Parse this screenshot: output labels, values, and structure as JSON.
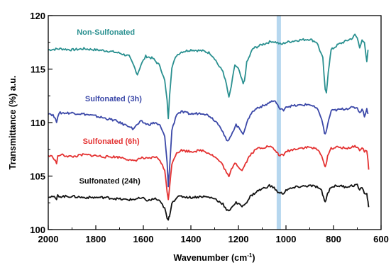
{
  "chart_data": {
    "type": "line",
    "xlabel": "Wavenumber (cm",
    "xlabel_sup": "-1",
    "xlabel_close": ")",
    "ylabel": "Transmittance (%) a.u.",
    "xlim": [
      2000,
      600
    ],
    "ylim": [
      100,
      120
    ],
    "x_reversed": true,
    "x_ticks": [
      2000,
      1800,
      1600,
      1400,
      1200,
      1000,
      800,
      600
    ],
    "x_tick_labels": [
      "2000",
      "1800",
      "1600",
      "1400",
      "1200",
      "1000",
      "800",
      "600"
    ],
    "y_ticks": [
      100,
      105,
      110,
      115,
      120
    ],
    "y_tick_labels": [
      "100",
      "105",
      "110",
      "115",
      "120"
    ],
    "grid": false,
    "highlight_band_x": 1030,
    "highlight_color": "#a9d0ec",
    "series": [
      {
        "name": "Non-Sulfonated",
        "color": "#2a9090",
        "points": [
          [
            2000,
            116.8
          ],
          [
            1950,
            116.9
          ],
          [
            1900,
            116.8
          ],
          [
            1850,
            116.9
          ],
          [
            1800,
            116.8
          ],
          [
            1750,
            116.7
          ],
          [
            1700,
            116.5
          ],
          [
            1660,
            116.2
          ],
          [
            1640,
            115.3
          ],
          [
            1625,
            114.5
          ],
          [
            1610,
            115.4
          ],
          [
            1590,
            116.2
          ],
          [
            1560,
            116.0
          ],
          [
            1530,
            115.3
          ],
          [
            1510,
            113.9
          ],
          [
            1500,
            112.0
          ],
          [
            1495,
            110.3
          ],
          [
            1490,
            112.5
          ],
          [
            1480,
            115.2
          ],
          [
            1460,
            116.3
          ],
          [
            1440,
            116.6
          ],
          [
            1400,
            116.8
          ],
          [
            1350,
            116.7
          ],
          [
            1320,
            116.5
          ],
          [
            1300,
            116.0
          ],
          [
            1280,
            115.2
          ],
          [
            1265,
            114.8
          ],
          [
            1250,
            113.5
          ],
          [
            1240,
            112.3
          ],
          [
            1230,
            113.4
          ],
          [
            1215,
            115.4
          ],
          [
            1200,
            115.0
          ],
          [
            1180,
            113.6
          ],
          [
            1175,
            113.9
          ],
          [
            1165,
            115.6
          ],
          [
            1140,
            116.9
          ],
          [
            1100,
            117.3
          ],
          [
            1060,
            117.6
          ],
          [
            1040,
            117.5
          ],
          [
            1020,
            117.3
          ],
          [
            1000,
            117.5
          ],
          [
            950,
            117.7
          ],
          [
            900,
            117.8
          ],
          [
            870,
            117.5
          ],
          [
            845,
            116.0
          ],
          [
            835,
            113.0
          ],
          [
            830,
            112.8
          ],
          [
            822,
            114.8
          ],
          [
            810,
            116.8
          ],
          [
            780,
            117.3
          ],
          [
            750,
            117.6
          ],
          [
            720,
            117.9
          ],
          [
            710,
            118.2
          ],
          [
            700,
            117.9
          ],
          [
            690,
            117.0
          ],
          [
            680,
            117.8
          ],
          [
            670,
            117.4
          ],
          [
            660,
            115.6
          ],
          [
            655,
            116.8
          ]
        ]
      },
      {
        "name": "Sulfonated (3h)",
        "color": "#3b48a8",
        "points": [
          [
            2000,
            110.9
          ],
          [
            1980,
            110.7
          ],
          [
            1965,
            110.1
          ],
          [
            1960,
            110.6
          ],
          [
            1950,
            110.9
          ],
          [
            1900,
            110.9
          ],
          [
            1850,
            110.8
          ],
          [
            1800,
            110.6
          ],
          [
            1760,
            110.4
          ],
          [
            1720,
            110.2
          ],
          [
            1680,
            109.8
          ],
          [
            1660,
            109.7
          ],
          [
            1645,
            109.4
          ],
          [
            1630,
            109.7
          ],
          [
            1610,
            110.1
          ],
          [
            1580,
            109.8
          ],
          [
            1550,
            110.0
          ],
          [
            1530,
            109.7
          ],
          [
            1510,
            108.7
          ],
          [
            1500,
            106.2
          ],
          [
            1495,
            104.1
          ],
          [
            1490,
            105.6
          ],
          [
            1480,
            109.3
          ],
          [
            1460,
            110.8
          ],
          [
            1440,
            111.0
          ],
          [
            1400,
            110.8
          ],
          [
            1350,
            110.9
          ],
          [
            1320,
            110.6
          ],
          [
            1300,
            110.2
          ],
          [
            1280,
            109.8
          ],
          [
            1265,
            109.1
          ],
          [
            1250,
            108.3
          ],
          [
            1240,
            108.3
          ],
          [
            1230,
            108.9
          ],
          [
            1210,
            109.8
          ],
          [
            1195,
            109.4
          ],
          [
            1180,
            109.0
          ],
          [
            1165,
            109.9
          ],
          [
            1150,
            110.8
          ],
          [
            1120,
            111.4
          ],
          [
            1090,
            111.6
          ],
          [
            1060,
            112.0
          ],
          [
            1040,
            111.9
          ],
          [
            1025,
            111.2
          ],
          [
            1010,
            111.2
          ],
          [
            1000,
            111.5
          ],
          [
            950,
            111.6
          ],
          [
            900,
            111.7
          ],
          [
            870,
            111.3
          ],
          [
            850,
            110.4
          ],
          [
            838,
            109.0
          ],
          [
            832,
            109.0
          ],
          [
            825,
            109.8
          ],
          [
            810,
            111.1
          ],
          [
            780,
            111.2
          ],
          [
            750,
            111.3
          ],
          [
            720,
            111.4
          ],
          [
            700,
            111.4
          ],
          [
            690,
            110.9
          ],
          [
            680,
            111.3
          ],
          [
            670,
            110.6
          ],
          [
            660,
            111.3
          ],
          [
            655,
            110.8
          ]
        ]
      },
      {
        "name": "Sulfonated (6h)",
        "color": "#e43232",
        "points": [
          [
            2000,
            106.9
          ],
          [
            1980,
            106.8
          ],
          [
            1965,
            106.2
          ],
          [
            1960,
            106.8
          ],
          [
            1950,
            107.0
          ],
          [
            1900,
            106.8
          ],
          [
            1850,
            107.0
          ],
          [
            1800,
            106.9
          ],
          [
            1760,
            106.8
          ],
          [
            1720,
            106.8
          ],
          [
            1680,
            106.7
          ],
          [
            1650,
            106.4
          ],
          [
            1630,
            106.5
          ],
          [
            1610,
            106.7
          ],
          [
            1580,
            106.6
          ],
          [
            1550,
            106.8
          ],
          [
            1530,
            106.5
          ],
          [
            1510,
            105.5
          ],
          [
            1500,
            103.5
          ],
          [
            1495,
            102.9
          ],
          [
            1490,
            103.8
          ],
          [
            1480,
            106.2
          ],
          [
            1460,
            107.2
          ],
          [
            1440,
            107.4
          ],
          [
            1400,
            107.3
          ],
          [
            1350,
            107.4
          ],
          [
            1320,
            107.1
          ],
          [
            1300,
            106.8
          ],
          [
            1280,
            106.4
          ],
          [
            1265,
            106.0
          ],
          [
            1250,
            105.3
          ],
          [
            1240,
            104.9
          ],
          [
            1230,
            105.6
          ],
          [
            1215,
            106.3
          ],
          [
            1200,
            105.9
          ],
          [
            1185,
            105.5
          ],
          [
            1170,
            106.2
          ],
          [
            1150,
            107.0
          ],
          [
            1120,
            107.6
          ],
          [
            1090,
            107.7
          ],
          [
            1070,
            107.8
          ],
          [
            1050,
            107.5
          ],
          [
            1030,
            107.0
          ],
          [
            1010,
            106.9
          ],
          [
            1000,
            107.3
          ],
          [
            950,
            107.6
          ],
          [
            900,
            107.7
          ],
          [
            870,
            107.5
          ],
          [
            850,
            107.0
          ],
          [
            838,
            105.9
          ],
          [
            832,
            106.0
          ],
          [
            825,
            106.9
          ],
          [
            810,
            107.6
          ],
          [
            780,
            107.7
          ],
          [
            750,
            107.6
          ],
          [
            720,
            107.7
          ],
          [
            700,
            107.8
          ],
          [
            690,
            107.3
          ],
          [
            680,
            107.7
          ],
          [
            670,
            107.3
          ],
          [
            660,
            107.4
          ],
          [
            655,
            106.4
          ],
          [
            652,
            105.6
          ]
        ]
      },
      {
        "name": "Sulfonated (24h)",
        "color": "#111111",
        "points": [
          [
            2000,
            103.1
          ],
          [
            1980,
            103.1
          ],
          [
            1965,
            102.8
          ],
          [
            1960,
            103.2
          ],
          [
            1950,
            103.1
          ],
          [
            1900,
            103.1
          ],
          [
            1850,
            103.0
          ],
          [
            1800,
            103.0
          ],
          [
            1760,
            103.0
          ],
          [
            1720,
            102.9
          ],
          [
            1680,
            102.8
          ],
          [
            1650,
            102.8
          ],
          [
            1620,
            102.9
          ],
          [
            1600,
            102.9
          ],
          [
            1580,
            102.7
          ],
          [
            1550,
            102.9
          ],
          [
            1530,
            102.6
          ],
          [
            1510,
            102.0
          ],
          [
            1500,
            101.0
          ],
          [
            1495,
            100.9
          ],
          [
            1490,
            101.3
          ],
          [
            1480,
            102.5
          ],
          [
            1460,
            103.0
          ],
          [
            1440,
            103.1
          ],
          [
            1400,
            103.0
          ],
          [
            1350,
            103.1
          ],
          [
            1320,
            103.0
          ],
          [
            1300,
            102.9
          ],
          [
            1280,
            102.6
          ],
          [
            1265,
            102.4
          ],
          [
            1250,
            101.8
          ],
          [
            1240,
            101.7
          ],
          [
            1230,
            102.1
          ],
          [
            1210,
            102.5
          ],
          [
            1195,
            102.3
          ],
          [
            1180,
            102.2
          ],
          [
            1165,
            102.6
          ],
          [
            1150,
            103.1
          ],
          [
            1120,
            103.6
          ],
          [
            1090,
            103.9
          ],
          [
            1070,
            104.1
          ],
          [
            1050,
            103.9
          ],
          [
            1030,
            103.4
          ],
          [
            1010,
            103.4
          ],
          [
            1000,
            103.7
          ],
          [
            950,
            104.0
          ],
          [
            900,
            104.1
          ],
          [
            870,
            104.0
          ],
          [
            850,
            103.6
          ],
          [
            838,
            102.7
          ],
          [
            832,
            102.7
          ],
          [
            825,
            103.4
          ],
          [
            810,
            104.0
          ],
          [
            780,
            104.1
          ],
          [
            750,
            104.0
          ],
          [
            720,
            104.1
          ],
          [
            700,
            104.2
          ],
          [
            690,
            103.6
          ],
          [
            680,
            104.0
          ],
          [
            670,
            103.4
          ],
          [
            660,
            103.3
          ],
          [
            655,
            102.6
          ],
          [
            652,
            102.1
          ]
        ]
      }
    ]
  }
}
